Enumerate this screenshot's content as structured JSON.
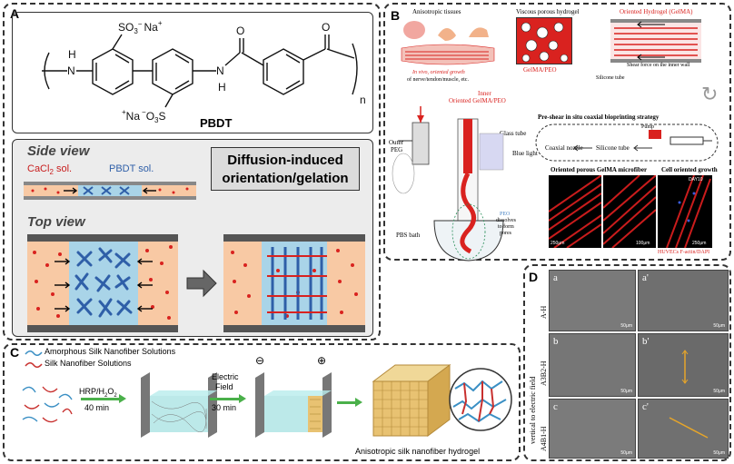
{
  "panel_a": {
    "label": "A",
    "molecule": {
      "so3_top": "SO",
      "so3_top_sub": "3",
      "so3_top_sup": "−",
      "na_top": "Na",
      "na_top_sup": "+",
      "nh_left": "H",
      "n_left": "N",
      "n_right": "N",
      "h_right": "H",
      "o1": "O",
      "o2": "O",
      "na_bottom": "Na",
      "na_bottom_sup": "+",
      "so3_bottom": "O",
      "so3_bottom_sub": "3",
      "so3_bottom_prefix": "−",
      "s_bottom": "S",
      "n_sub": "n"
    },
    "name": "PBDT",
    "side_view": "Side view",
    "top_view": "Top view",
    "cacl2": "CaCl",
    "cacl2_sub": "2",
    "cacl2_suffix": " sol.",
    "pbdt_sol": "PBDT sol.",
    "box_line1": "Diffusion-induced",
    "box_line2": "orientation/gelation"
  },
  "panel_b": {
    "label": "B",
    "t1": "Anisotropic tissues",
    "t2": "Viscous porous hydrogel",
    "t3": "Oriented Hydrogel (GelMA)",
    "invivo1": "In vivo, oriented growth",
    "invivo2": "of nerve/tendon/muscle, etc.",
    "gelma_peo": "GelMA/PEO",
    "shear": "Shear force on the inner wall",
    "silicone": "Silicone tube",
    "inner1": "Inner",
    "inner2": "Oriented GelMA/PEO",
    "outer": "Outer",
    "peg": "PEG",
    "glass": "Glass tube",
    "blue": "Blue light",
    "strategy": "Pre-shear in situ coaxial bioprinting  strategy",
    "pump": "Pump",
    "coaxial": "Coaxial nozzle",
    "silicone2": "Silicone tube",
    "peo1": "PEO",
    "peo2": "dissolves",
    "peo3": "to form",
    "peo4": "pores",
    "pbs": "PBS bath",
    "micro1": "Oriented porous GelMA microfiber",
    "micro2": "Cell oriented growth",
    "day": "DAY10",
    "huvec": "HUVECs F-actin/DAPI",
    "scale1": "250μm",
    "scale2": "100μm",
    "scale3": "250μm"
  },
  "panel_c": {
    "label": "C",
    "legend1": "Amorphous Silk Nanofiber Solutions",
    "legend2": "Silk Nanofiber Solutions",
    "hrp": "HRP/H",
    "hrp_sub": "2",
    "hrp_o": "O",
    "hrp_sub2": "2",
    "time1": "40 min",
    "ef1": "Electric",
    "ef2": "Field",
    "time2": "30 min",
    "minus": "⊖",
    "plus": "⊕",
    "product": "Anisotropic silk nanofiber hydrogel"
  },
  "panel_d": {
    "label": "D",
    "row1": "A-H",
    "row2": "A3B2-H",
    "row3": "A4B1-H",
    "side": "vertical to electric field",
    "letters": [
      "a",
      "a'",
      "b",
      "b'",
      "c",
      "c'"
    ],
    "scale": "50μm"
  },
  "colors": {
    "dye_red": "#d9221f",
    "pbdt_blue": "#2f5fa8",
    "cacl_bg": "#f8c9a4",
    "pbdt_bg": "#a9d4e8",
    "sem_gray": "#6b6b6b"
  }
}
